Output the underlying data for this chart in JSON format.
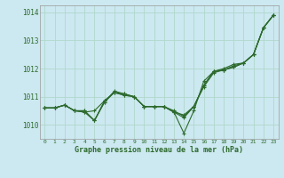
{
  "title": "Graphe pression niveau de la mer (hPa)",
  "background_color": "#cce8f0",
  "grid_color": "#b0d8cc",
  "line_color": "#2d6a2d",
  "xlim": [
    -0.5,
    23.5
  ],
  "ylim": [
    1009.5,
    1014.25
  ],
  "yticks": [
    1010,
    1011,
    1012,
    1013,
    1014
  ],
  "xticks": [
    0,
    1,
    2,
    3,
    4,
    5,
    6,
    7,
    8,
    9,
    10,
    11,
    12,
    13,
    14,
    15,
    16,
    17,
    18,
    19,
    20,
    21,
    22,
    23
  ],
  "series": [
    [
      1010.6,
      1010.6,
      1010.7,
      1010.5,
      1010.5,
      1010.15,
      1010.8,
      1011.15,
      1011.1,
      1011.0,
      1010.65,
      1010.65,
      1010.65,
      1010.45,
      1010.35,
      1010.65,
      1011.35,
      1011.85,
      1011.95,
      1012.05,
      1012.2,
      1012.5,
      1013.45,
      1013.9
    ],
    [
      1010.6,
      1010.6,
      1010.7,
      1010.5,
      1010.5,
      1010.15,
      1010.8,
      1011.2,
      1011.1,
      1011.0,
      1010.65,
      1010.65,
      1010.65,
      1010.45,
      1009.7,
      1010.5,
      1011.55,
      1011.9,
      1012.0,
      1012.15,
      1012.2,
      1012.5,
      1013.45,
      1013.9
    ],
    [
      1010.6,
      1010.6,
      1010.7,
      1010.5,
      1010.45,
      1010.15,
      1010.85,
      1011.15,
      1011.05,
      1011.0,
      1010.65,
      1010.65,
      1010.65,
      1010.5,
      1010.3,
      1010.65,
      1011.4,
      1011.9,
      1011.95,
      1012.1,
      1012.2,
      1012.5,
      1013.45,
      1013.9
    ],
    [
      1010.6,
      1010.6,
      1010.7,
      1010.5,
      1010.45,
      1010.5,
      1010.85,
      1011.15,
      1011.05,
      1011.0,
      1010.65,
      1010.65,
      1010.65,
      1010.45,
      1010.25,
      1010.65,
      1011.4,
      1011.9,
      1011.95,
      1012.05,
      1012.2,
      1012.5,
      1013.45,
      1013.9
    ]
  ]
}
